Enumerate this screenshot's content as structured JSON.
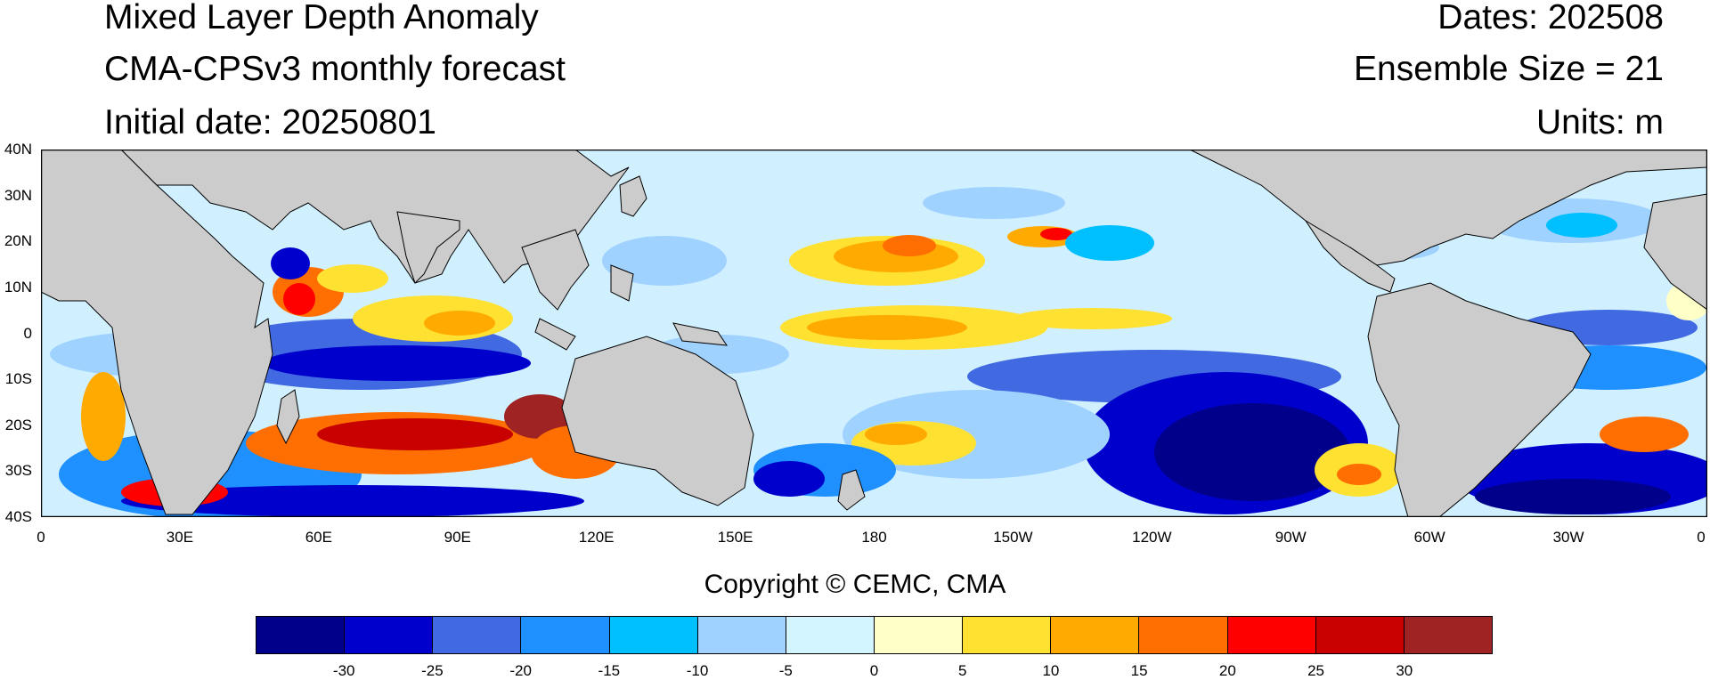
{
  "header": {
    "title": "Mixed Layer Depth Anomaly",
    "subtitle": "CMA-CPSv3 monthly forecast",
    "initial": "Initial date: 20250801",
    "dates": "Dates: 202508",
    "ensemble": "Ensemble Size = 21",
    "units": "Units: m"
  },
  "map": {
    "lat_labels": [
      "40N",
      "30N",
      "20N",
      "10N",
      "0",
      "10S",
      "20S",
      "30S",
      "40S"
    ],
    "lon_labels": [
      "0",
      "30E",
      "60E",
      "90E",
      "120E",
      "150E",
      "180",
      "150W",
      "120W",
      "90W",
      "60W",
      "30W",
      "0"
    ],
    "land_color": "#cccccc",
    "ocean_base_color": "#d0f0ff"
  },
  "copyright": "Copyright © CEMC, CMA",
  "colorbar": {
    "colors": [
      "#00008b",
      "#0000cd",
      "#4169e1",
      "#1e90ff",
      "#00bfff",
      "#a0d2ff",
      "#d2f5ff",
      "#ffffc8",
      "#ffe132",
      "#ffaa00",
      "#ff6e00",
      "#ff0000",
      "#c80000",
      "#a02323"
    ],
    "labels": [
      "-30",
      "-25",
      "-20",
      "-15",
      "-10",
      "-5",
      "0",
      "5",
      "10",
      "15",
      "20",
      "25",
      "30"
    ]
  }
}
